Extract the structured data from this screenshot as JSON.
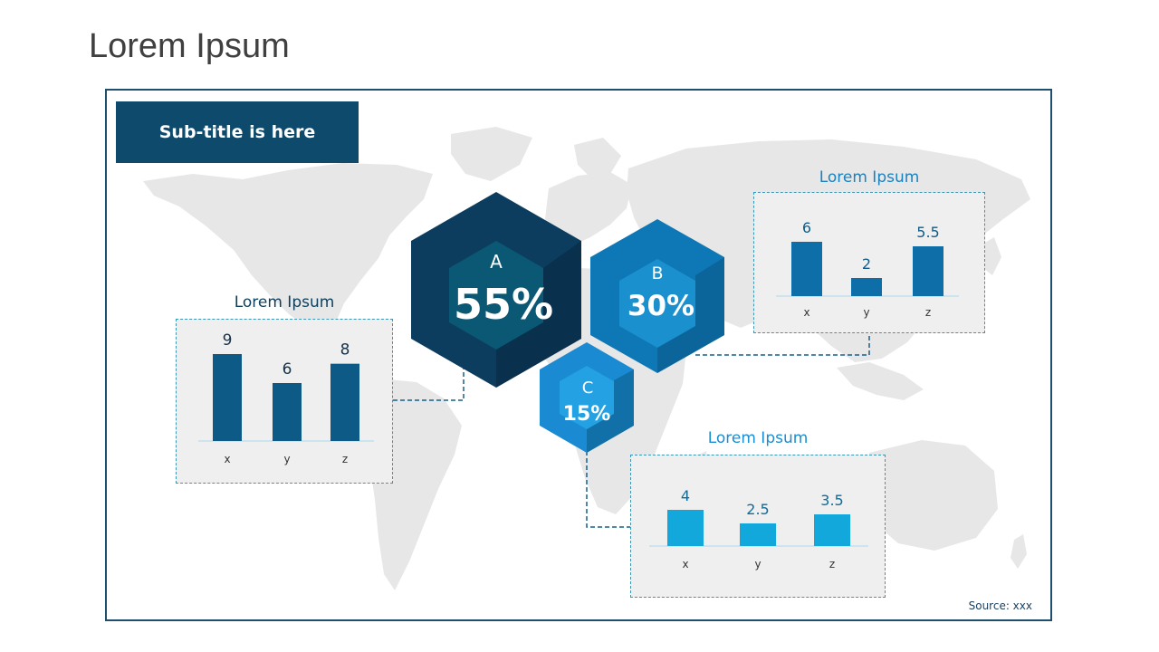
{
  "page": {
    "title": "Lorem Ipsum"
  },
  "subtitle": "Sub-title is here",
  "source": "Source: xxx",
  "colors": {
    "frame_border": "#1e4f6e",
    "subtitle_bg": "#0d4a6c",
    "map_land": "#e7e7e7",
    "panel_bg": "#efefef",
    "panel_border": "#3a98b6",
    "hex_a": "#0c3d5e",
    "hex_b": "#0e78b7",
    "hex_c": "#1a8ad2"
  },
  "hexagons": [
    {
      "letter": "A",
      "value": "55%",
      "color_outer": "#0c3d5e",
      "color_inner": "#0a5873"
    },
    {
      "letter": "B",
      "value": "30%",
      "color_outer": "#0e78b7",
      "color_inner": "#1b90cf"
    },
    {
      "letter": "C",
      "value": "15%",
      "color_outer": "#1a8ad2",
      "color_inner": "#23a1e3"
    }
  ],
  "chart_data": [
    {
      "type": "bar",
      "title": "Lorem Ipsum",
      "categories": [
        "x",
        "y",
        "z"
      ],
      "values": [
        9,
        6,
        8
      ],
      "color": "#0d5a86",
      "title_color": "#0d3f5c",
      "label_color": "#16324a"
    },
    {
      "type": "bar",
      "title": "Lorem Ipsum",
      "categories": [
        "x",
        "y",
        "z"
      ],
      "values": [
        6,
        2,
        5.5
      ],
      "color": "#0e6fa8",
      "title_color": "#1a82c0",
      "label_color": "#0e5d8c"
    },
    {
      "type": "bar",
      "title": "Lorem Ipsum",
      "categories": [
        "x",
        "y",
        "z"
      ],
      "values": [
        4,
        2.5,
        3.5
      ],
      "color": "#13a8dc",
      "title_color": "#1a8ed0",
      "label_color": "#0e6b9c"
    }
  ]
}
